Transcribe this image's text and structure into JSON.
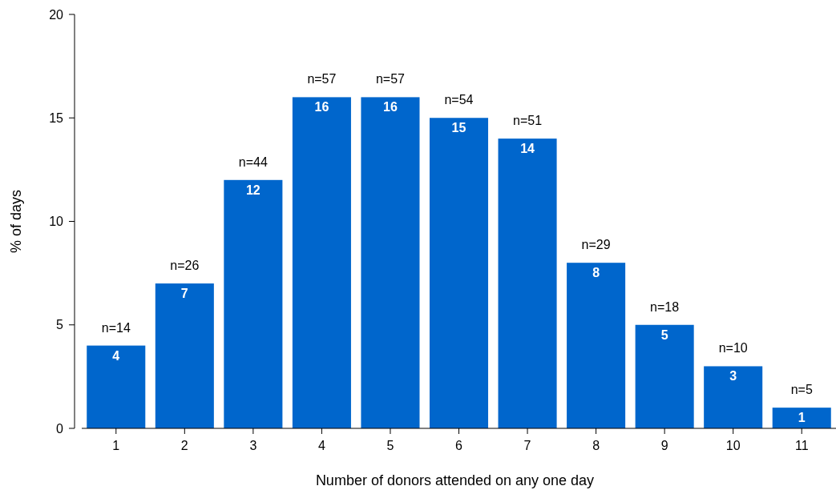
{
  "chart_data": {
    "type": "bar",
    "xlabel": "Number of donors attended on any one day",
    "ylabel": "% of days",
    "categories": [
      "1",
      "2",
      "3",
      "4",
      "5",
      "6",
      "7",
      "8",
      "9",
      "10",
      "11"
    ],
    "values": [
      4,
      7,
      12,
      16,
      16,
      15,
      14,
      8,
      5,
      3,
      1
    ],
    "color": "#0066cc",
    "data_labels": true,
    "ylim": [
      0,
      20
    ],
    "yticks": [
      0,
      5,
      10,
      15,
      20
    ],
    "grid": false,
    "annotations": [
      {
        "text": "n=14",
        "x": "1",
        "y": 4
      },
      {
        "text": "n=26",
        "x": "2",
        "y": 7
      },
      {
        "text": "n=44",
        "x": "3",
        "y": 12
      },
      {
        "text": "n=57",
        "x": "4",
        "y": 16
      },
      {
        "text": "n=57",
        "x": "5",
        "y": 16
      },
      {
        "text": "n=54",
        "x": "6",
        "y": 15
      },
      {
        "text": "n=51",
        "x": "7",
        "y": 14
      },
      {
        "text": "n=29",
        "x": "8",
        "y": 8
      },
      {
        "text": "n=18",
        "x": "9",
        "y": 5
      },
      {
        "text": "n=10",
        "x": "10",
        "y": 3
      },
      {
        "text": "n=5",
        "x": "11",
        "y": 1
      }
    ]
  }
}
